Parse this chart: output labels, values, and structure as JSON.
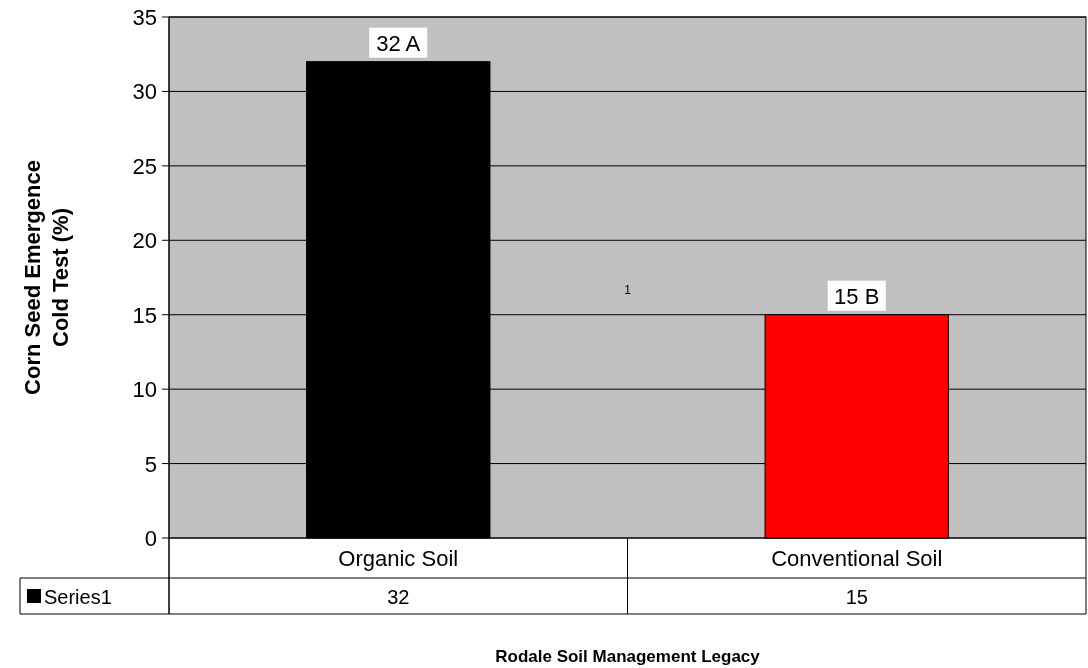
{
  "chart_data": {
    "type": "bar",
    "xlabel": "Rodale Soil Management Legacy",
    "ylabel": "Corn Seed Emergence\nCold Test (%)",
    "categories": [
      "Organic Soil",
      "Conventional Soil"
    ],
    "series": [
      {
        "name": "Series1",
        "color": "#000000",
        "colors": [
          "#000000",
          "#ff0000"
        ],
        "values": [
          32,
          15
        ]
      }
    ],
    "ylim": [
      0,
      35
    ],
    "yticks": [
      0,
      5,
      10,
      15,
      20,
      25,
      30,
      35
    ],
    "grid": "y",
    "data_labels": true,
    "legend": "bottom left",
    "annotations": [
      {
        "text": "32 A",
        "x": "Organic Soil",
        "y": 32
      },
      {
        "text": "15 B",
        "x": "Conventional Soil",
        "y": 15
      },
      "1"
    ]
  }
}
